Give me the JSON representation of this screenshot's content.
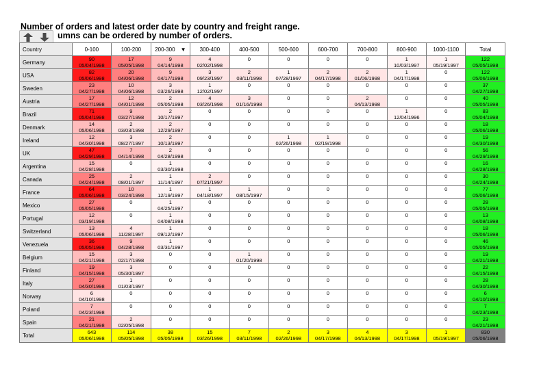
{
  "report": {
    "title": "Number of orders and latest order date by country and freight range.",
    "subtitle": "umns can be ordered by number of orders.",
    "sort_up_icon": "arrow-up-icon",
    "sort_down_icon": "arrow-down-icon"
  },
  "colors": {
    "header_bg": "#ececec",
    "country_bg": "#e3e3e3",
    "total_col_bg": "#22ee22",
    "total_row_bg": "#ffff00",
    "grand_total_bg": "#808080",
    "heat_max": "#ff1a1a",
    "heat_high": "#ff7f7f",
    "heat_mid": "#ffbcbc",
    "heat_low": "#ffe4e4",
    "heat_min": "#fff3f3"
  },
  "table": {
    "columns": [
      "Country",
      "0-100",
      "100-200",
      "200-300",
      "300-400",
      "400-500",
      "500-600",
      "600-700",
      "700-800",
      "800-900",
      "1000-1100",
      "Total"
    ],
    "sorted_column_index": 3,
    "sort_indicator": "▼",
    "rows": [
      {
        "country": "Germany",
        "cells": [
          [
            "90",
            "05/04/1998"
          ],
          [
            "17",
            "05/05/1998"
          ],
          [
            "9",
            "04/14/1998"
          ],
          [
            "4",
            "02/02/1998"
          ],
          [
            "0",
            ""
          ],
          [
            "0",
            ""
          ],
          [
            "0",
            ""
          ],
          [
            "0",
            ""
          ],
          [
            "1",
            "10/03/1997"
          ],
          [
            "1",
            "05/19/1997"
          ]
        ],
        "total": [
          "122",
          "05/05/1998"
        ]
      },
      {
        "country": "USA",
        "cells": [
          [
            "82",
            "05/06/1998"
          ],
          [
            "20",
            "04/06/1998"
          ],
          [
            "9",
            "04/17/1998"
          ],
          [
            "3",
            "09/23/1997"
          ],
          [
            "2",
            "03/11/1998"
          ],
          [
            "1",
            "07/28/1997"
          ],
          [
            "2",
            "04/17/1998"
          ],
          [
            "2",
            "01/06/1998"
          ],
          [
            "1",
            "04/17/1998"
          ],
          [
            "0",
            ""
          ]
        ],
        "total": [
          "122",
          "05/06/1998"
        ]
      },
      {
        "country": "Sweden",
        "cells": [
          [
            "23",
            "04/27/1998"
          ],
          [
            "10",
            "04/06/1998"
          ],
          [
            "3",
            "03/26/1998"
          ],
          [
            "1",
            "12/02/1997"
          ],
          [
            "0",
            ""
          ],
          [
            "0",
            ""
          ],
          [
            "0",
            ""
          ],
          [
            "0",
            ""
          ],
          [
            "0",
            ""
          ],
          [
            "0",
            ""
          ]
        ],
        "total": [
          "37",
          "04/27/1998"
        ]
      },
      {
        "country": "Austria",
        "cells": [
          [
            "17",
            "04/27/1998"
          ],
          [
            "12",
            "04/01/1998"
          ],
          [
            "2",
            "05/05/1998"
          ],
          [
            "4",
            "03/26/1998"
          ],
          [
            "3",
            "01/16/1998"
          ],
          [
            "0",
            ""
          ],
          [
            "0",
            ""
          ],
          [
            "2",
            "04/13/1998"
          ],
          [
            "0",
            ""
          ],
          [
            "0",
            ""
          ]
        ],
        "total": [
          "40",
          "05/05/1998"
        ]
      },
      {
        "country": "Brazil",
        "cells": [
          [
            "71",
            "05/04/1998"
          ],
          [
            "9",
            "03/27/1998"
          ],
          [
            "2",
            "10/17/1997"
          ],
          [
            "0",
            ""
          ],
          [
            "0",
            ""
          ],
          [
            "0",
            ""
          ],
          [
            "0",
            ""
          ],
          [
            "0",
            ""
          ],
          [
            "1",
            "12/04/1996"
          ],
          [
            "0",
            ""
          ]
        ],
        "total": [
          "83",
          "05/04/1998"
        ]
      },
      {
        "country": "Denmark",
        "cells": [
          [
            "14",
            "05/06/1998"
          ],
          [
            "2",
            "03/03/1998"
          ],
          [
            "2",
            "12/29/1997"
          ],
          [
            "0",
            ""
          ],
          [
            "0",
            ""
          ],
          [
            "0",
            ""
          ],
          [
            "0",
            ""
          ],
          [
            "0",
            ""
          ],
          [
            "0",
            ""
          ],
          [
            "0",
            ""
          ]
        ],
        "total": [
          "18",
          "05/06/1998"
        ]
      },
      {
        "country": "Ireland",
        "cells": [
          [
            "12",
            "04/30/1998"
          ],
          [
            "3",
            "08/27/1997"
          ],
          [
            "2",
            "10/13/1997"
          ],
          [
            "0",
            ""
          ],
          [
            "0",
            ""
          ],
          [
            "1",
            "02/26/1998"
          ],
          [
            "1",
            "02/19/1998"
          ],
          [
            "0",
            ""
          ],
          [
            "0",
            ""
          ],
          [
            "0",
            ""
          ]
        ],
        "total": [
          "19",
          "04/30/1998"
        ]
      },
      {
        "country": "UK",
        "cells": [
          [
            "47",
            "04/29/1998"
          ],
          [
            "7",
            "04/14/1998"
          ],
          [
            "2",
            "04/28/1998"
          ],
          [
            "0",
            ""
          ],
          [
            "0",
            ""
          ],
          [
            "0",
            ""
          ],
          [
            "0",
            ""
          ],
          [
            "0",
            ""
          ],
          [
            "0",
            ""
          ],
          [
            "0",
            ""
          ]
        ],
        "total": [
          "56",
          "04/29/1998"
        ]
      },
      {
        "country": "Argentina",
        "cells": [
          [
            "15",
            "04/28/1998"
          ],
          [
            "0",
            ""
          ],
          [
            "1",
            "03/30/1998"
          ],
          [
            "0",
            ""
          ],
          [
            "0",
            ""
          ],
          [
            "0",
            ""
          ],
          [
            "0",
            ""
          ],
          [
            "0",
            ""
          ],
          [
            "0",
            ""
          ],
          [
            "0",
            ""
          ]
        ],
        "total": [
          "16",
          "04/28/1998"
        ]
      },
      {
        "country": "Canada",
        "cells": [
          [
            "25",
            "04/24/1998"
          ],
          [
            "2",
            "08/01/1997"
          ],
          [
            "1",
            "11/14/1997"
          ],
          [
            "2",
            "07/21/1997"
          ],
          [
            "0",
            ""
          ],
          [
            "0",
            ""
          ],
          [
            "0",
            ""
          ],
          [
            "0",
            ""
          ],
          [
            "0",
            ""
          ],
          [
            "0",
            ""
          ]
        ],
        "total": [
          "30",
          "04/24/1998"
        ]
      },
      {
        "country": "France",
        "cells": [
          [
            "64",
            "05/06/1998"
          ],
          [
            "10",
            "03/24/1998"
          ],
          [
            "1",
            "12/19/1997"
          ],
          [
            "1",
            "04/18/1997"
          ],
          [
            "1",
            "08/15/1997"
          ],
          [
            "0",
            ""
          ],
          [
            "0",
            ""
          ],
          [
            "0",
            ""
          ],
          [
            "0",
            ""
          ],
          [
            "0",
            ""
          ]
        ],
        "total": [
          "77",
          "05/06/1998"
        ]
      },
      {
        "country": "Mexico",
        "cells": [
          [
            "27",
            "05/05/1998"
          ],
          [
            "0",
            ""
          ],
          [
            "1",
            "04/25/1997"
          ],
          [
            "0",
            ""
          ],
          [
            "0",
            ""
          ],
          [
            "0",
            ""
          ],
          [
            "0",
            ""
          ],
          [
            "0",
            ""
          ],
          [
            "0",
            ""
          ],
          [
            "0",
            ""
          ]
        ],
        "total": [
          "28",
          "05/05/1998"
        ]
      },
      {
        "country": "Portugal",
        "cells": [
          [
            "12",
            "03/19/1998"
          ],
          [
            "0",
            ""
          ],
          [
            "1",
            "04/08/1998"
          ],
          [
            "0",
            ""
          ],
          [
            "0",
            ""
          ],
          [
            "0",
            ""
          ],
          [
            "0",
            ""
          ],
          [
            "0",
            ""
          ],
          [
            "0",
            ""
          ],
          [
            "0",
            ""
          ]
        ],
        "total": [
          "13",
          "04/08/1998"
        ]
      },
      {
        "country": "Switzerland",
        "cells": [
          [
            "13",
            "05/06/1998"
          ],
          [
            "4",
            "11/28/1997"
          ],
          [
            "1",
            "09/12/1997"
          ],
          [
            "0",
            ""
          ],
          [
            "0",
            ""
          ],
          [
            "0",
            ""
          ],
          [
            "0",
            ""
          ],
          [
            "0",
            ""
          ],
          [
            "0",
            ""
          ],
          [
            "0",
            ""
          ]
        ],
        "total": [
          "18",
          "05/06/1998"
        ]
      },
      {
        "country": "Venezuela",
        "cells": [
          [
            "36",
            "05/05/1998"
          ],
          [
            "9",
            "04/28/1998"
          ],
          [
            "1",
            "03/31/1997"
          ],
          [
            "0",
            ""
          ],
          [
            "0",
            ""
          ],
          [
            "0",
            ""
          ],
          [
            "0",
            ""
          ],
          [
            "0",
            ""
          ],
          [
            "0",
            ""
          ],
          [
            "0",
            ""
          ]
        ],
        "total": [
          "46",
          "05/05/1998"
        ]
      },
      {
        "country": "Belgium",
        "cells": [
          [
            "15",
            "04/21/1998"
          ],
          [
            "3",
            "02/17/1998"
          ],
          [
            "0",
            ""
          ],
          [
            "0",
            ""
          ],
          [
            "1",
            "01/20/1998"
          ],
          [
            "0",
            ""
          ],
          [
            "0",
            ""
          ],
          [
            "0",
            ""
          ],
          [
            "0",
            ""
          ],
          [
            "0",
            ""
          ]
        ],
        "total": [
          "19",
          "04/21/1998"
        ]
      },
      {
        "country": "Finland",
        "cells": [
          [
            "19",
            "04/15/1998"
          ],
          [
            "3",
            "05/30/1997"
          ],
          [
            "0",
            ""
          ],
          [
            "0",
            ""
          ],
          [
            "0",
            ""
          ],
          [
            "0",
            ""
          ],
          [
            "0",
            ""
          ],
          [
            "0",
            ""
          ],
          [
            "0",
            ""
          ],
          [
            "0",
            ""
          ]
        ],
        "total": [
          "22",
          "04/15/1998"
        ]
      },
      {
        "country": "Italy",
        "cells": [
          [
            "27",
            "04/30/1998"
          ],
          [
            "1",
            "01/03/1997"
          ],
          [
            "0",
            ""
          ],
          [
            "0",
            ""
          ],
          [
            "0",
            ""
          ],
          [
            "0",
            ""
          ],
          [
            "0",
            ""
          ],
          [
            "0",
            ""
          ],
          [
            "0",
            ""
          ],
          [
            "0",
            ""
          ]
        ],
        "total": [
          "28",
          "04/30/1998"
        ]
      },
      {
        "country": "Norway",
        "cells": [
          [
            "6",
            "04/10/1998"
          ],
          [
            "0",
            ""
          ],
          [
            "0",
            ""
          ],
          [
            "0",
            ""
          ],
          [
            "0",
            ""
          ],
          [
            "0",
            ""
          ],
          [
            "0",
            ""
          ],
          [
            "0",
            ""
          ],
          [
            "0",
            ""
          ],
          [
            "0",
            ""
          ]
        ],
        "total": [
          "6",
          "04/10/1998"
        ]
      },
      {
        "country": "Poland",
        "cells": [
          [
            "7",
            "04/23/1998"
          ],
          [
            "0",
            ""
          ],
          [
            "0",
            ""
          ],
          [
            "0",
            ""
          ],
          [
            "0",
            ""
          ],
          [
            "0",
            ""
          ],
          [
            "0",
            ""
          ],
          [
            "0",
            ""
          ],
          [
            "0",
            ""
          ],
          [
            "0",
            ""
          ]
        ],
        "total": [
          "7",
          "04/23/1998"
        ]
      },
      {
        "country": "Spain",
        "cells": [
          [
            "21",
            "04/21/1998"
          ],
          [
            "2",
            "02/05/1998"
          ],
          [
            "0",
            ""
          ],
          [
            "0",
            ""
          ],
          [
            "0",
            ""
          ],
          [
            "0",
            ""
          ],
          [
            "0",
            ""
          ],
          [
            "0",
            ""
          ],
          [
            "0",
            ""
          ],
          [
            "0",
            ""
          ]
        ],
        "total": [
          "23",
          "04/21/1998"
        ]
      }
    ],
    "totals": {
      "label": "Total",
      "cells": [
        [
          "643",
          "05/06/1998"
        ],
        [
          "114",
          "05/05/1998"
        ],
        [
          "38",
          "05/05/1998"
        ],
        [
          "15",
          "03/26/1998"
        ],
        [
          "7",
          "03/11/1998"
        ],
        [
          "2",
          "02/26/1998"
        ],
        [
          "3",
          "04/17/1998"
        ],
        [
          "4",
          "04/13/1998"
        ],
        [
          "3",
          "04/17/1998"
        ],
        [
          "1",
          "05/19/1997"
        ]
      ],
      "grand": [
        "830",
        "05/06/1998"
      ]
    }
  }
}
